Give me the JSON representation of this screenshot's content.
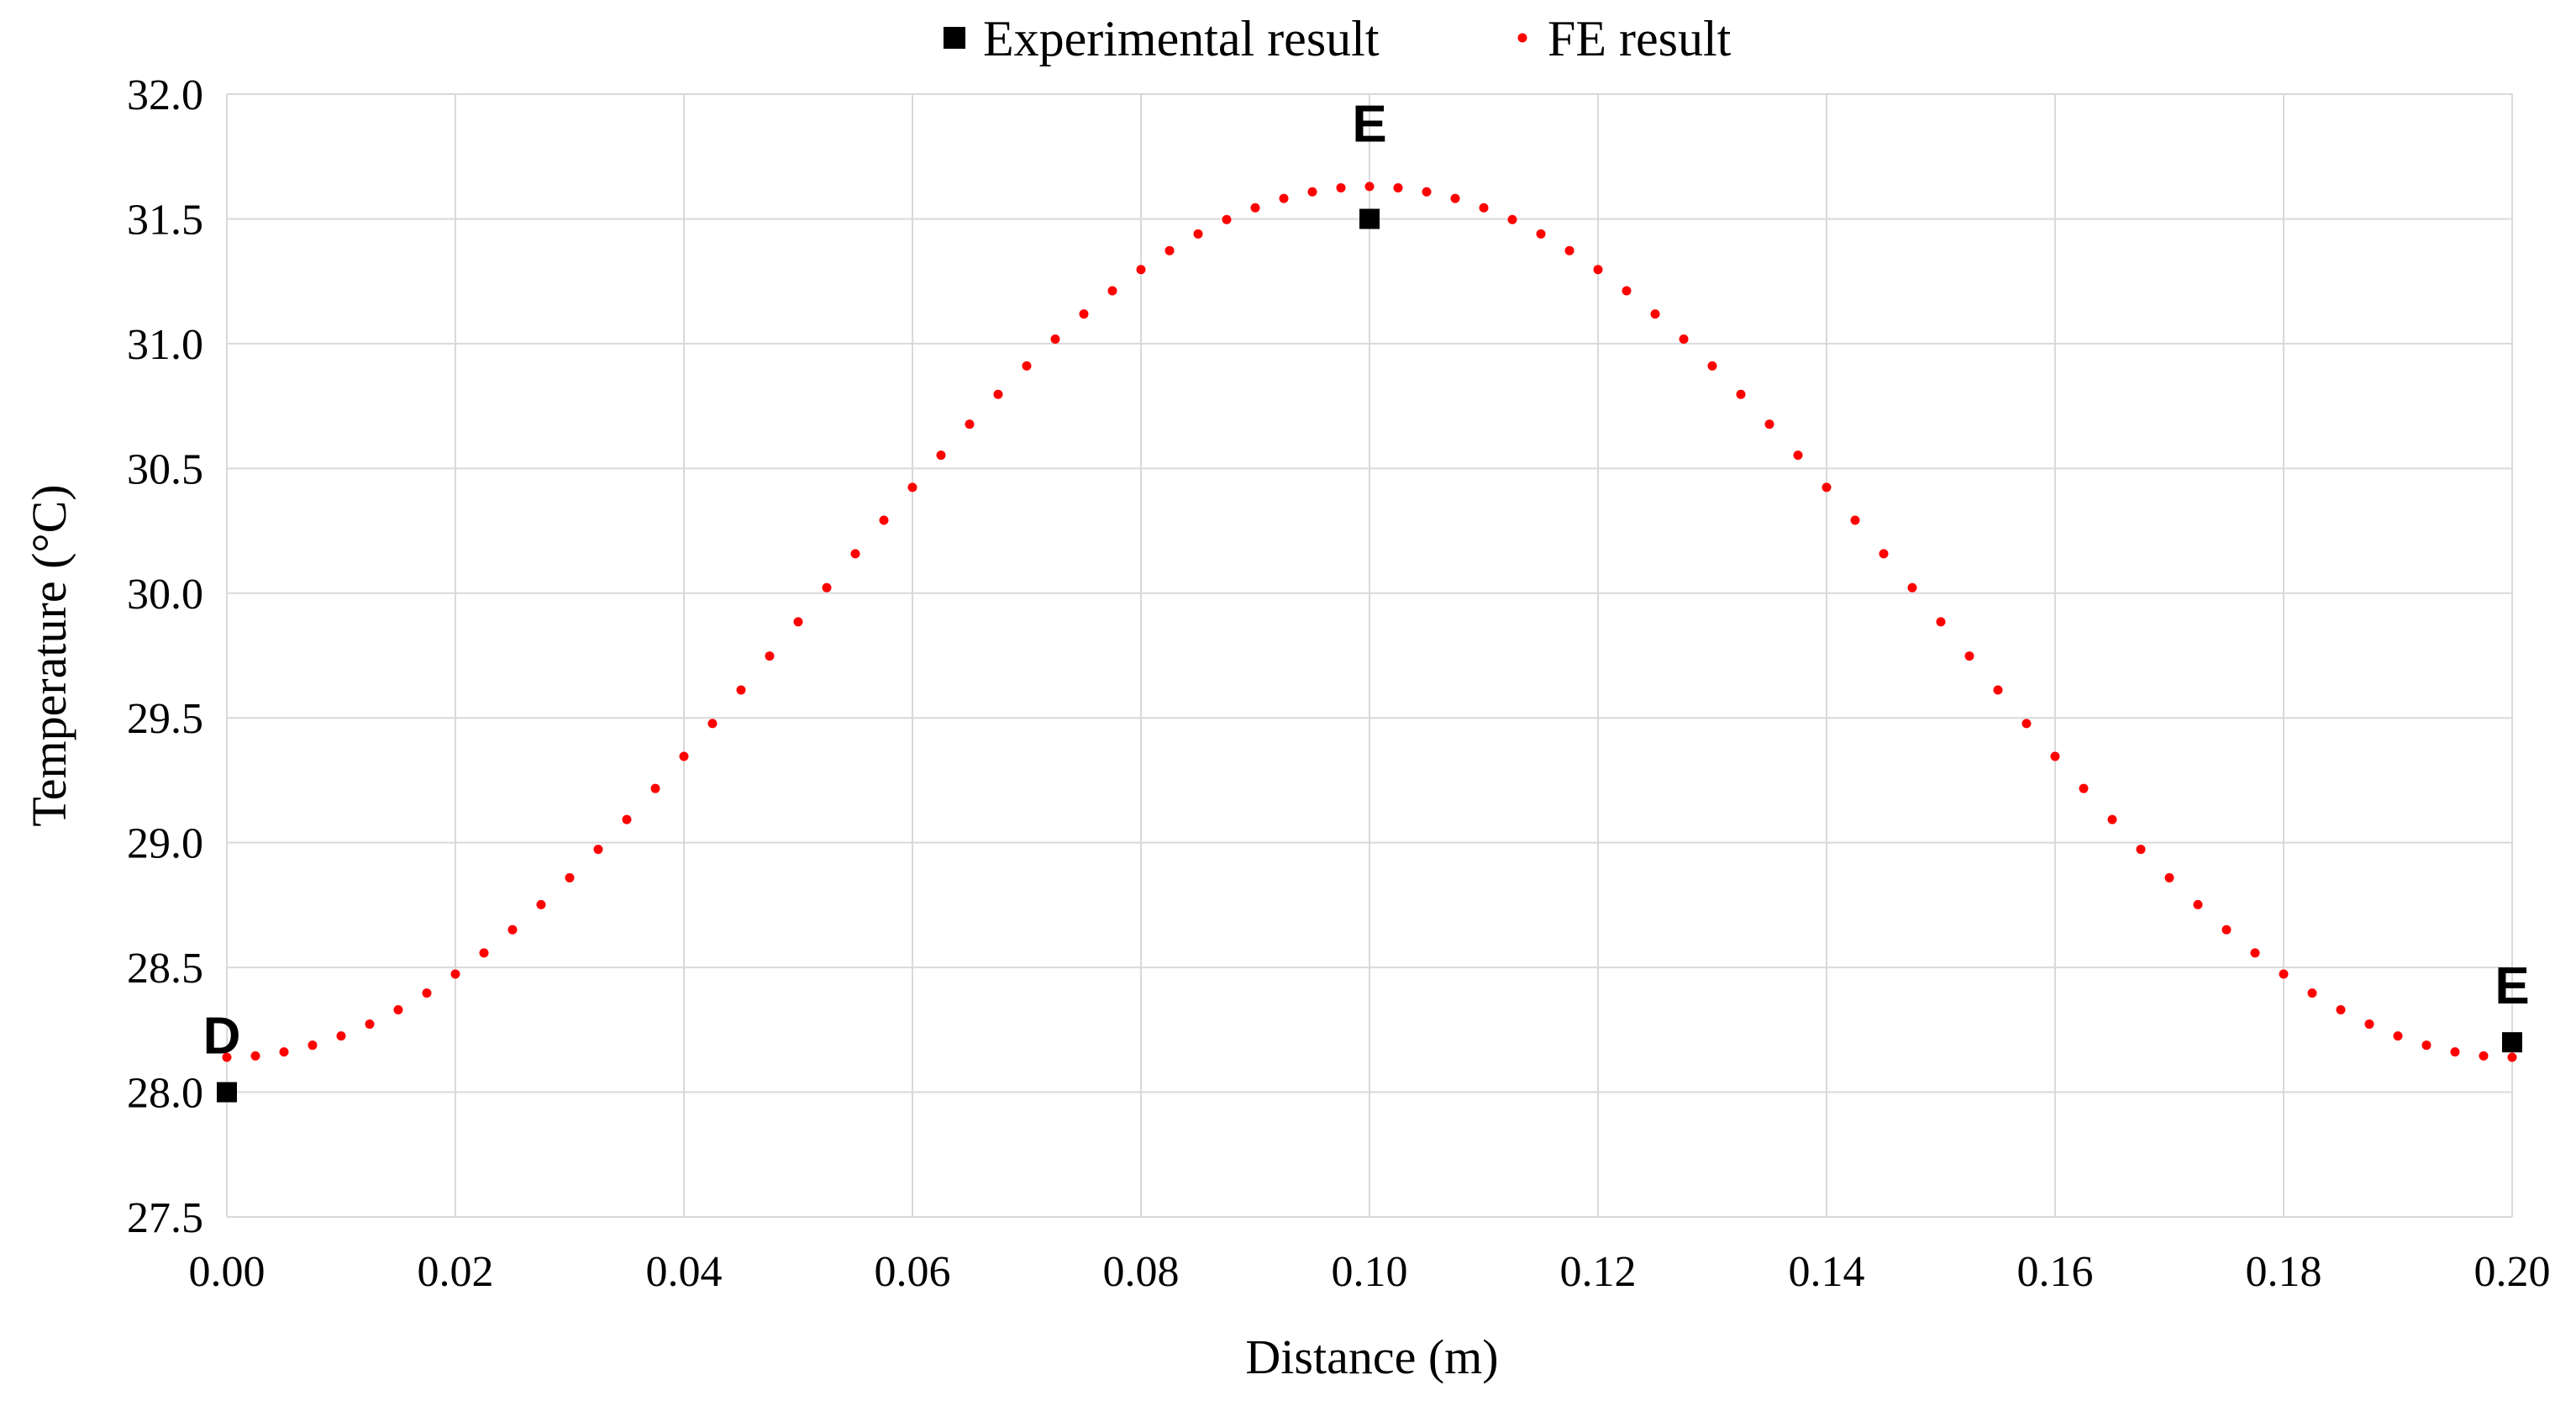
{
  "chart_data": {
    "type": "scatter",
    "title": "",
    "xlabel": "Distance (m)",
    "ylabel": "Temperature (°C)",
    "xlim": [
      0,
      0.2
    ],
    "ylim": [
      27.5,
      32.0
    ],
    "x_ticks": [
      "0.00",
      "0.02",
      "0.04",
      "0.06",
      "0.08",
      "0.10",
      "0.12",
      "0.14",
      "0.16",
      "0.18",
      "0.20"
    ],
    "y_ticks": [
      "27.5",
      "28.0",
      "28.5",
      "29.0",
      "29.5",
      "30.0",
      "30.5",
      "31.0",
      "31.5",
      "32.0"
    ],
    "grid": true,
    "legend_position": "top-center",
    "series": [
      {
        "name": "Experimental result",
        "marker": "square",
        "color": "#000000",
        "x": [
          0.0,
          0.1,
          0.2
        ],
        "y": [
          28.0,
          31.5,
          28.2
        ]
      },
      {
        "name": "FE result",
        "marker": "circle",
        "color": "#ff0000",
        "model": {
          "x_min": 0.0,
          "x_max": 0.2,
          "points": 81,
          "base": 28.14,
          "peak": 31.63,
          "peak_x": 0.1
        }
      }
    ],
    "annotations": [
      {
        "text": "D",
        "x": 0.0,
        "y": 28.0
      },
      {
        "text": "E",
        "x": 0.1,
        "y": 31.5
      },
      {
        "text": "E",
        "x": 0.2,
        "y": 28.2
      }
    ]
  }
}
